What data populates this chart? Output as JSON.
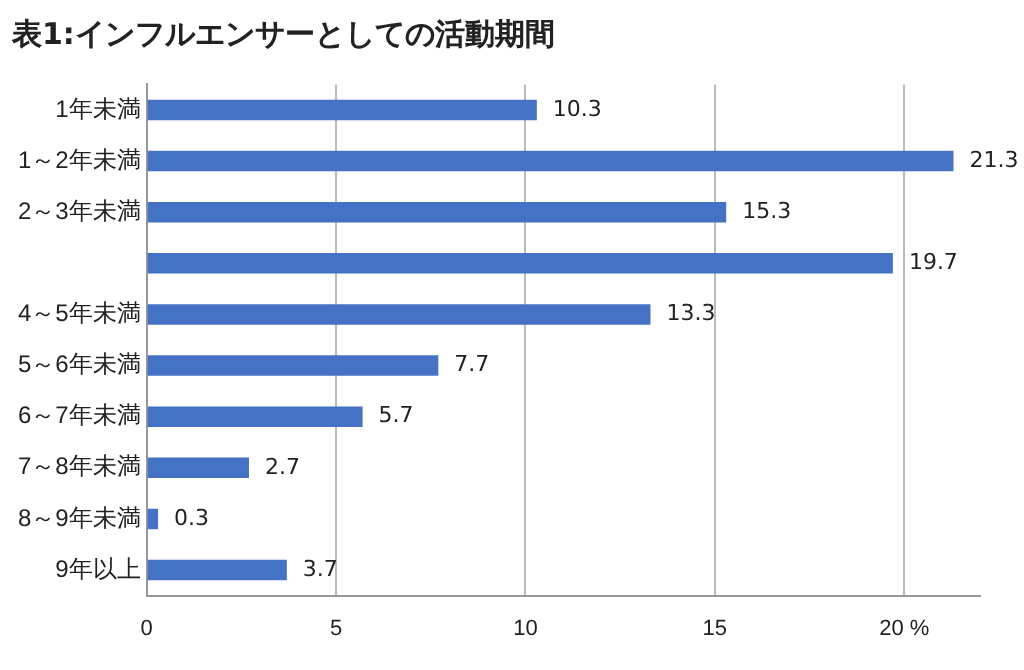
{
  "chart_data": {
    "type": "bar",
    "orientation": "horizontal",
    "title": "表1:インフルエンサーとしての活動期間",
    "categories": [
      "1年未満",
      "1～2年未満",
      "2～3年未満",
      null,
      "4～5年未満",
      "5～6年未満",
      "6～7年未満",
      "7～8年未満",
      "8～9年未満",
      "9年以上"
    ],
    "values": [
      10.3,
      21.3,
      15.3,
      19.7,
      13.3,
      7.7,
      5.7,
      2.7,
      0.3,
      3.7
    ],
    "color": "#4472c4",
    "xlim": [
      0,
      22
    ],
    "xticks": [
      0,
      5,
      10,
      15,
      {
        "value": 20,
        "label": "20 %"
      }
    ],
    "grid": "x",
    "data_labels": true,
    "legend": false
  }
}
